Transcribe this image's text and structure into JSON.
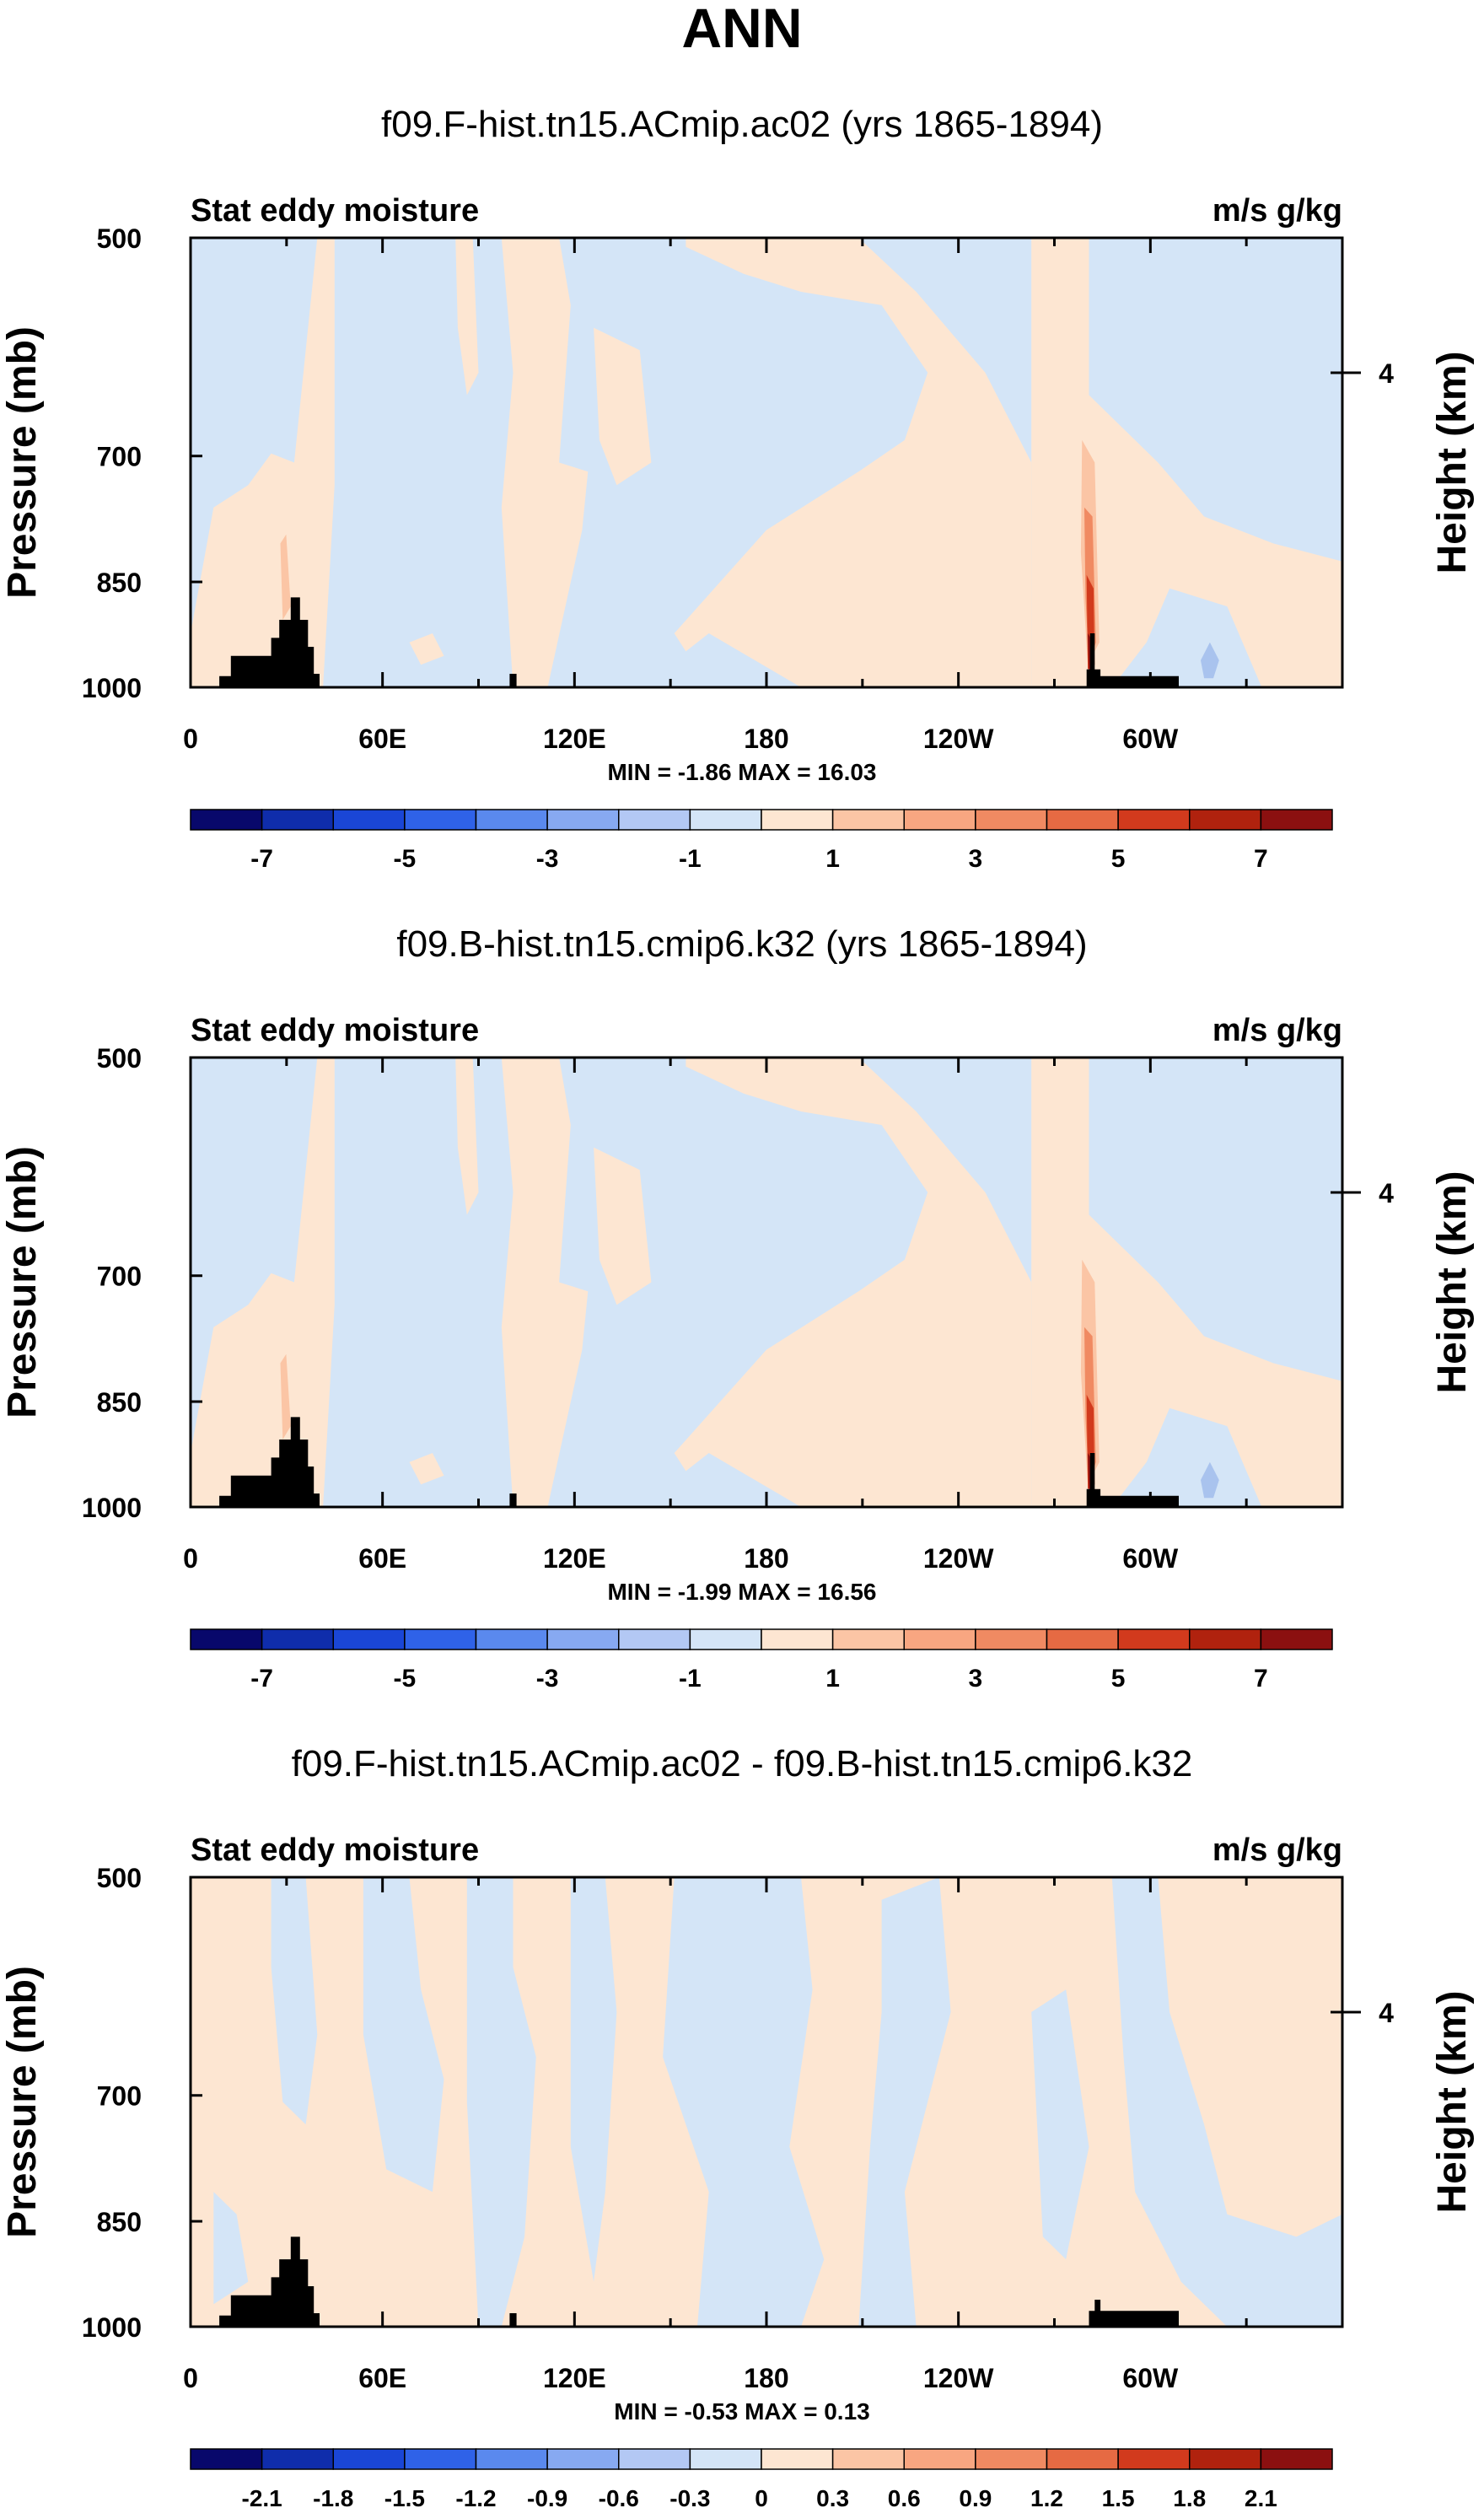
{
  "page_title": "ANN",
  "colors": {
    "light_blue": "#d4e5f7",
    "light_orange": "#fde6d2",
    "mid_orange": "#fbc5a5",
    "dark_orange": "#f08a62",
    "red": "#d23a1d",
    "dark_red": "#8b1010",
    "blue_patch": "#a9c3ee",
    "topo": "#000000"
  },
  "chart_data": [
    {
      "type": "heatmap",
      "title": "f09.F-hist.tn15.ACmip.ac02 (yrs 1865-1894)",
      "left_label": "Stat eddy moisture",
      "right_label": "m/s g/kg",
      "ylabel": "Pressure (mb)",
      "ylabel_right": "Height (km)",
      "yticks": [
        "500",
        "700",
        "850",
        "1000"
      ],
      "yticks_right": [
        "4"
      ],
      "xticks": [
        "0",
        "60E",
        "120E",
        "180",
        "120W",
        "60W"
      ],
      "minmax": "MIN = -1.86  MAX = 16.03",
      "colorbar_labels": [
        "-7",
        "-5",
        "-3",
        "-1",
        "1",
        "3",
        "5",
        "7"
      ],
      "colorbar_colors": [
        "#08086b",
        "#0f2dab",
        "#1a46d6",
        "#2f62e8",
        "#5a89ee",
        "#87a9f1",
        "#b3c8f4",
        "#d4e5f7",
        "#fde6d2",
        "#fbc5a5",
        "#f8a681",
        "#f08a62",
        "#e66a43",
        "#d23a1d",
        "#b0220e",
        "#8b1010"
      ]
    },
    {
      "type": "heatmap",
      "title": "f09.B-hist.tn15.cmip6.k32 (yrs 1865-1894)",
      "left_label": "Stat eddy moisture",
      "right_label": "m/s g/kg",
      "ylabel": "Pressure (mb)",
      "ylabel_right": "Height (km)",
      "yticks": [
        "500",
        "700",
        "850",
        "1000"
      ],
      "yticks_right": [
        "4"
      ],
      "xticks": [
        "0",
        "60E",
        "120E",
        "180",
        "120W",
        "60W"
      ],
      "minmax": "MIN = -1.99  MAX = 16.56",
      "colorbar_labels": [
        "-7",
        "-5",
        "-3",
        "-1",
        "1",
        "3",
        "5",
        "7"
      ],
      "colorbar_colors": [
        "#08086b",
        "#0f2dab",
        "#1a46d6",
        "#2f62e8",
        "#5a89ee",
        "#87a9f1",
        "#b3c8f4",
        "#d4e5f7",
        "#fde6d2",
        "#fbc5a5",
        "#f8a681",
        "#f08a62",
        "#e66a43",
        "#d23a1d",
        "#b0220e",
        "#8b1010"
      ]
    },
    {
      "type": "heatmap",
      "title": "f09.F-hist.tn15.ACmip.ac02 - f09.B-hist.tn15.cmip6.k32",
      "left_label": "Stat eddy moisture",
      "right_label": "m/s g/kg",
      "ylabel": "Pressure (mb)",
      "ylabel_right": "Height (km)",
      "yticks": [
        "500",
        "700",
        "850",
        "1000"
      ],
      "yticks_right": [
        "4"
      ],
      "xticks": [
        "0",
        "60E",
        "120E",
        "180",
        "120W",
        "60W"
      ],
      "minmax": "MIN = -0.53  MAX =  0.13",
      "colorbar_labels": [
        "-2.1",
        "-1.8",
        "-1.5",
        "-1.2",
        "-0.9",
        "-0.6",
        "-0.3",
        "0",
        "0.3",
        "0.6",
        "0.9",
        "1.2",
        "1.5",
        "1.8",
        "2.1"
      ],
      "colorbar_colors": [
        "#08086b",
        "#0f2dab",
        "#1a46d6",
        "#2f62e8",
        "#5a89ee",
        "#87a9f1",
        "#b3c8f4",
        "#d4e5f7",
        "#fde6d2",
        "#fbc5a5",
        "#f8a681",
        "#f08a62",
        "#e66a43",
        "#d23a1d",
        "#b0220e",
        "#8b1010"
      ]
    }
  ]
}
